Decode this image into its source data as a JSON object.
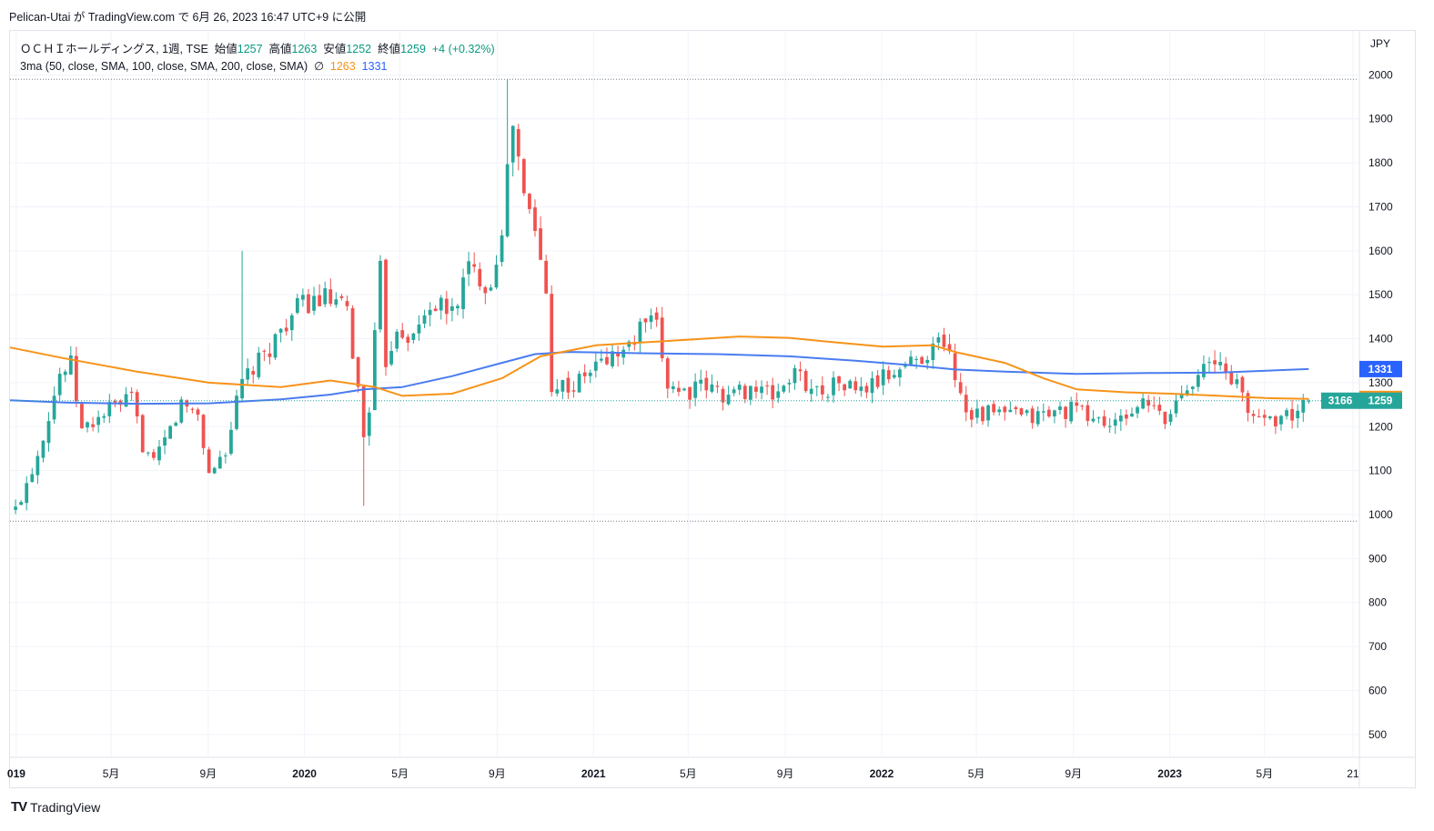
{
  "header": {
    "text": "Pelican-Utai が TradingView.com で 6月 26, 2023 16:47 UTC+9 に公開"
  },
  "legend": {
    "symbol": "ＯＣＨＩホールディングス, 1週, TSE",
    "open_label": "始値",
    "open_value": "1257",
    "high_label": "高値",
    "high_value": "1263",
    "low_label": "安値",
    "low_value": "1252",
    "close_label": "終値",
    "close_value": "1259",
    "change": "+4 (+0.32%)",
    "ma_label": "3ma (50, close, SMA, 100, close, SMA, 200, close, SMA)",
    "ma_symbol": "∅",
    "ma_value_1": "1263",
    "ma_value_2": "1331"
  },
  "footer": {
    "logo": "TV",
    "brand": "TradingView"
  },
  "colors": {
    "up": "#26a69a",
    "down": "#ef5350",
    "ma50": "#f7931a",
    "ma100": "#4a7cf0",
    "grid": "#f0f3fa",
    "border": "#e0e3eb",
    "text": "#131722"
  },
  "chart_data": {
    "type": "candlestick",
    "currency": "JPY",
    "y_range": [
      450,
      2100
    ],
    "y_ticks": [
      500,
      600,
      700,
      800,
      900,
      1000,
      1100,
      1200,
      1300,
      1400,
      1500,
      1600,
      1700,
      1800,
      1900,
      2000
    ],
    "x_range": [
      "2018-12-24",
      "2023-08-28"
    ],
    "x_ticks": [
      {
        "date": "2019-01-01",
        "label": "019",
        "bold": true
      },
      {
        "date": "2019-05-01",
        "label": "5月",
        "bold": false
      },
      {
        "date": "2019-09-01",
        "label": "9月",
        "bold": false
      },
      {
        "date": "2020-01-01",
        "label": "2020",
        "bold": true
      },
      {
        "date": "2020-05-01",
        "label": "5月",
        "bold": false
      },
      {
        "date": "2020-09-01",
        "label": "9月",
        "bold": false
      },
      {
        "date": "2021-01-01",
        "label": "2021",
        "bold": true
      },
      {
        "date": "2021-05-01",
        "label": "5月",
        "bold": false
      },
      {
        "date": "2021-09-01",
        "label": "9月",
        "bold": false
      },
      {
        "date": "2022-01-01",
        "label": "2022",
        "bold": true
      },
      {
        "date": "2022-05-01",
        "label": "5月",
        "bold": false
      },
      {
        "date": "2022-09-01",
        "label": "9月",
        "bold": false
      },
      {
        "date": "2023-01-01",
        "label": "2023",
        "bold": true
      },
      {
        "date": "2023-05-01",
        "label": "5月",
        "bold": false
      },
      {
        "date": "2023-08-21",
        "label": "21",
        "bold": false
      }
    ],
    "dotted_levels": [
      1990,
      985
    ],
    "close_path": [
      [
        "2018-12-31",
        1010
      ],
      [
        "2019-01-28",
        1140
      ],
      [
        "2019-02-25",
        1320
      ],
      [
        "2019-03-11",
        1340
      ],
      [
        "2019-03-25",
        1190
      ],
      [
        "2019-04-29",
        1240
      ],
      [
        "2019-05-27",
        1260
      ],
      [
        "2019-06-10",
        1160
      ],
      [
        "2019-06-24",
        1110
      ],
      [
        "2019-07-29",
        1250
      ],
      [
        "2019-08-19",
        1230
      ],
      [
        "2019-09-02",
        1090
      ],
      [
        "2019-09-23",
        1150
      ],
      [
        "2019-10-14",
        1300
      ],
      [
        "2019-11-11",
        1360
      ],
      [
        "2019-12-09",
        1440
      ],
      [
        "2019-12-30",
        1480
      ],
      [
        "2020-01-27",
        1490
      ],
      [
        "2020-02-24",
        1460
      ],
      [
        "2020-03-09",
        1280
      ],
      [
        "2020-03-16",
        1180
      ],
      [
        "2020-03-23",
        1250
      ],
      [
        "2020-04-06",
        1550
      ],
      [
        "2020-04-13",
        1350
      ],
      [
        "2020-04-27",
        1430
      ],
      [
        "2020-05-18",
        1400
      ],
      [
        "2020-06-08",
        1480
      ],
      [
        "2020-07-06",
        1460
      ],
      [
        "2020-07-27",
        1560
      ],
      [
        "2020-08-24",
        1520
      ],
      [
        "2020-09-07",
        1660
      ],
      [
        "2020-09-21",
        1890
      ],
      [
        "2020-10-05",
        1720
      ],
      [
        "2020-10-19",
        1650
      ],
      [
        "2020-11-02",
        1500
      ],
      [
        "2020-11-09",
        1300
      ],
      [
        "2020-12-07",
        1290
      ],
      [
        "2021-01-04",
        1340
      ],
      [
        "2021-01-25",
        1360
      ],
      [
        "2021-02-15",
        1380
      ],
      [
        "2021-03-08",
        1440
      ],
      [
        "2021-03-22",
        1420
      ],
      [
        "2021-04-05",
        1300
      ],
      [
        "2021-04-26",
        1280
      ],
      [
        "2021-05-24",
        1290
      ],
      [
        "2021-06-21",
        1270
      ],
      [
        "2021-07-19",
        1290
      ],
      [
        "2021-08-16",
        1270
      ],
      [
        "2021-09-13",
        1320
      ],
      [
        "2021-10-11",
        1280
      ],
      [
        "2021-11-08",
        1300
      ],
      [
        "2021-12-06",
        1280
      ],
      [
        "2022-01-03",
        1310
      ],
      [
        "2022-01-31",
        1340
      ],
      [
        "2022-02-28",
        1370
      ],
      [
        "2022-03-21",
        1400
      ],
      [
        "2022-04-04",
        1320
      ],
      [
        "2022-04-18",
        1240
      ],
      [
        "2022-05-09",
        1230
      ],
      [
        "2022-06-06",
        1230
      ],
      [
        "2022-07-04",
        1220
      ],
      [
        "2022-08-01",
        1230
      ],
      [
        "2022-08-29",
        1240
      ],
      [
        "2022-09-26",
        1220
      ],
      [
        "2022-10-24",
        1200
      ],
      [
        "2022-11-21",
        1250
      ],
      [
        "2022-12-12",
        1240
      ],
      [
        "2022-12-26",
        1210
      ],
      [
        "2023-01-16",
        1280
      ],
      [
        "2023-02-06",
        1330
      ],
      [
        "2023-03-06",
        1340
      ],
      [
        "2023-03-27",
        1300
      ],
      [
        "2023-04-10",
        1230
      ],
      [
        "2023-05-08",
        1220
      ],
      [
        "2023-06-05",
        1225
      ],
      [
        "2023-06-26",
        1259
      ]
    ],
    "wick_spikes": [
      {
        "date": "2019-10-14",
        "high": 1600
      },
      {
        "date": "2020-03-16",
        "low": 1020
      },
      {
        "date": "2020-09-14",
        "high": 1990
      }
    ],
    "sma50": [
      [
        "2018-12-24",
        1380
      ],
      [
        "2019-03-04",
        1355
      ],
      [
        "2019-06-03",
        1325
      ],
      [
        "2019-09-02",
        1300
      ],
      [
        "2019-12-02",
        1290
      ],
      [
        "2020-02-03",
        1305
      ],
      [
        "2020-03-30",
        1290
      ],
      [
        "2020-05-04",
        1270
      ],
      [
        "2020-07-06",
        1275
      ],
      [
        "2020-09-07",
        1310
      ],
      [
        "2020-10-26",
        1360
      ],
      [
        "2021-01-04",
        1385
      ],
      [
        "2021-04-05",
        1395
      ],
      [
        "2021-07-05",
        1405
      ],
      [
        "2021-09-06",
        1402
      ],
      [
        "2021-11-01",
        1392
      ],
      [
        "2022-01-03",
        1382
      ],
      [
        "2022-03-07",
        1385
      ],
      [
        "2022-04-04",
        1370
      ],
      [
        "2022-06-06",
        1345
      ],
      [
        "2022-07-25",
        1310
      ],
      [
        "2022-09-05",
        1285
      ],
      [
        "2022-11-07",
        1278
      ],
      [
        "2023-01-02",
        1275
      ],
      [
        "2023-03-06",
        1270
      ],
      [
        "2023-05-01",
        1265
      ],
      [
        "2023-06-26",
        1263
      ]
    ],
    "sma100": [
      [
        "2018-12-24",
        1260
      ],
      [
        "2019-03-04",
        1255
      ],
      [
        "2019-06-03",
        1252
      ],
      [
        "2019-09-02",
        1253
      ],
      [
        "2019-12-02",
        1262
      ],
      [
        "2020-02-03",
        1273
      ],
      [
        "2020-03-16",
        1285
      ],
      [
        "2020-05-04",
        1290
      ],
      [
        "2020-07-06",
        1315
      ],
      [
        "2020-09-07",
        1345
      ],
      [
        "2020-10-19",
        1365
      ],
      [
        "2020-11-30",
        1370
      ],
      [
        "2021-03-01",
        1367
      ],
      [
        "2021-06-07",
        1365
      ],
      [
        "2021-09-06",
        1360
      ],
      [
        "2021-11-29",
        1350
      ],
      [
        "2022-02-07",
        1340
      ],
      [
        "2022-04-04",
        1330
      ],
      [
        "2022-06-06",
        1325
      ],
      [
        "2022-09-05",
        1320
      ],
      [
        "2022-12-05",
        1322
      ],
      [
        "2023-03-06",
        1323
      ],
      [
        "2023-06-26",
        1331
      ]
    ],
    "price_labels": [
      {
        "value": 1331,
        "text": "1331",
        "color": "#2962ff"
      },
      {
        "value": 1263,
        "text": "1263",
        "color": "#f7931a"
      },
      {
        "value": 1259,
        "text": "1259",
        "color": "#26a69a",
        "prefix": "3166"
      }
    ]
  }
}
